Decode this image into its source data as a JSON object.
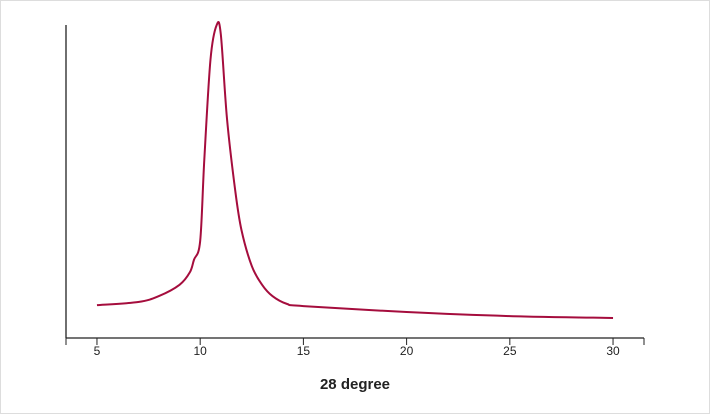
{
  "chart_data": {
    "type": "line",
    "x_label": "28 degree",
    "x": [
      5,
      7,
      8,
      9,
      9.5,
      9.7,
      10,
      10.2,
      10.5,
      10.8,
      11,
      11.3,
      11.7,
      12,
      12.5,
      13,
      13.5,
      14.2,
      15,
      20,
      25,
      30
    ],
    "series": [
      {
        "color": "#a50d3d",
        "values": [
          10.5,
          11.5,
          13.4,
          17,
          21,
          25,
          31,
          57,
          89,
          100,
          97,
          70,
          47,
          34.5,
          23,
          17,
          13.4,
          10.9,
          10.2,
          8.3,
          7,
          6.4
        ]
      }
    ],
    "xlim": [
      3.5,
      31.5
    ],
    "xticks": [
      5,
      10,
      15,
      20,
      25,
      30
    ],
    "ylim": [
      0,
      100
    ]
  }
}
